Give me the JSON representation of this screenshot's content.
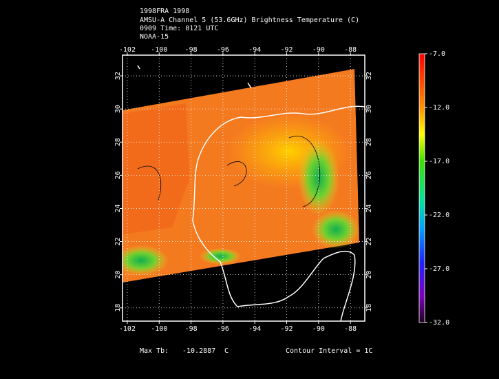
{
  "header": [
    "1998FRA 1998",
    "AMSU-A Channel 5 (53.6GHz) Brightness Temperature (C)",
    "0909 Time: 0121 UTC",
    "NOAA-15"
  ],
  "map": {
    "lon_lim": [
      -102.3,
      -87.1
    ],
    "lat_lim": [
      17.2,
      33.25
    ],
    "lon_ticks": [
      -102,
      -100,
      -98,
      -96,
      -94,
      -92,
      -90,
      -88
    ],
    "lat_ticks": [
      18,
      20,
      22,
      24,
      26,
      28,
      30,
      32
    ]
  },
  "colorbar": {
    "lim": [
      -32,
      -7
    ],
    "ticks": [
      {
        "value": -7,
        "label": "-7.0"
      },
      {
        "value": -12,
        "label": "-12.0"
      },
      {
        "value": -17,
        "label": "-17.0"
      },
      {
        "value": -22,
        "label": "-22.0"
      },
      {
        "value": -27,
        "label": "-27.0"
      },
      {
        "value": -32,
        "label": "-32.0"
      }
    ]
  },
  "footer": {
    "max_label": "Max Tb:",
    "max_value": "-10.2887",
    "unit": "C",
    "contour": "Contour Interval = 1C"
  }
}
